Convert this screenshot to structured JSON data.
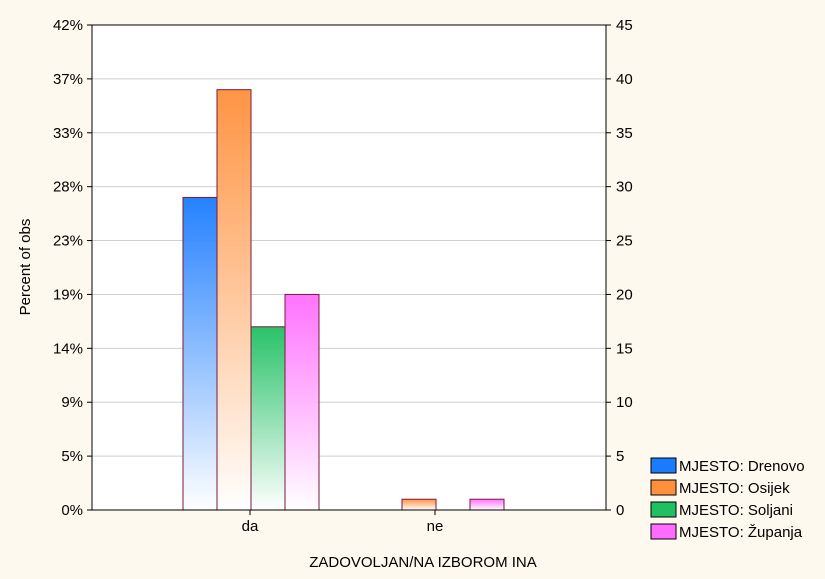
{
  "chart_data": {
    "type": "bar",
    "title": "",
    "xlabel": "ZADOVOLJAN/NA IZBOROM INA",
    "ylabel": "Percent of obs",
    "categories": [
      "da",
      "ne"
    ],
    "left_axis_ticks": [
      "0%",
      "5%",
      "9%",
      "14%",
      "19%",
      "23%",
      "28%",
      "33%",
      "37%",
      "42%"
    ],
    "right_axis_ticks": [
      "0",
      "5",
      "10",
      "15",
      "20",
      "25",
      "30",
      "35",
      "40",
      "45"
    ],
    "ylim": [
      0,
      45
    ],
    "grid": true,
    "legend_position": "bottom-right",
    "series": [
      {
        "name": "MJESTO: Drenovo",
        "color": "#1a7bff",
        "values": [
          29,
          0
        ]
      },
      {
        "name": "MJESTO: Osijek",
        "color": "#ff8f3a",
        "values": [
          39,
          1
        ]
      },
      {
        "name": "MJESTO: Soljani",
        "color": "#1fbf62",
        "values": [
          17,
          0
        ]
      },
      {
        "name": "MJESTO: Županja",
        "color": "#ff6cff",
        "values": [
          20,
          1
        ]
      }
    ]
  }
}
